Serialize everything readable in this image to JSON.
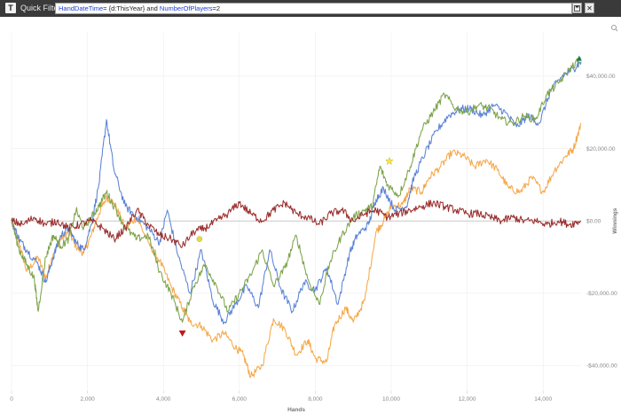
{
  "toolbar": {
    "filter_button_glyph": "T",
    "label": "Quick Filters",
    "query_parts": [
      {
        "text": "HandDateTime",
        "kind": "kw"
      },
      {
        "text": "= {d:ThisYear} and ",
        "kind": "tx"
      },
      {
        "text": "NumberOfPlayers",
        "kind": "kw"
      },
      {
        "text": "=2",
        "kind": "tx"
      }
    ],
    "save_icon": "floppy-disk-icon",
    "close_label": "✕"
  },
  "chart_data": {
    "type": "line",
    "xlabel": "Hands",
    "ylabel": "Winnings",
    "xlim": [
      0,
      15000
    ],
    "ylim": [
      -47000,
      52000
    ],
    "x_ticks": [
      {
        "value": 0,
        "label": "0"
      },
      {
        "value": 2000,
        "label": "2,000"
      },
      {
        "value": 4000,
        "label": "4,000"
      },
      {
        "value": 6000,
        "label": "6,000"
      },
      {
        "value": 8000,
        "label": "8,000"
      },
      {
        "value": 10000,
        "label": "10,000"
      },
      {
        "value": 12000,
        "label": "12,000"
      },
      {
        "value": 14000,
        "label": "14,000"
      }
    ],
    "y_ticks": [
      {
        "value": 40000,
        "label": "$40,000.00"
      },
      {
        "value": 20000,
        "label": "$20,000.00"
      },
      {
        "value": 0,
        "label": "$0.00"
      },
      {
        "value": -20000,
        "label": "-$20,000.00"
      },
      {
        "value": -40000,
        "label": "-$40,000.00"
      }
    ],
    "grid": true,
    "series": [
      {
        "color": "#f6a84a",
        "points": [
          [
            0,
            0
          ],
          [
            200,
            -6000
          ],
          [
            400,
            -14000
          ],
          [
            700,
            -10000
          ],
          [
            900,
            -16000
          ],
          [
            1100,
            -9000
          ],
          [
            1300,
            -5000
          ],
          [
            1500,
            -3000
          ],
          [
            1700,
            -7000
          ],
          [
            1900,
            -9000
          ],
          [
            2100,
            -4000
          ],
          [
            2300,
            2000
          ],
          [
            2500,
            6500
          ],
          [
            2700,
            5000
          ],
          [
            3000,
            -2000
          ],
          [
            3300,
            1000
          ],
          [
            3600,
            -6000
          ],
          [
            3900,
            -11000
          ],
          [
            4200,
            -18000
          ],
          [
            4500,
            -24000
          ],
          [
            4700,
            -28000
          ],
          [
            5000,
            -29000
          ],
          [
            5300,
            -33000
          ],
          [
            5600,
            -31000
          ],
          [
            5900,
            -35000
          ],
          [
            6100,
            -37000
          ],
          [
            6300,
            -43000
          ],
          [
            6600,
            -40000
          ],
          [
            6900,
            -27000
          ],
          [
            7200,
            -30000
          ],
          [
            7500,
            -37000
          ],
          [
            7800,
            -33000
          ],
          [
            8000,
            -38000
          ],
          [
            8300,
            -39000
          ],
          [
            8500,
            -29000
          ],
          [
            8800,
            -24000
          ],
          [
            9000,
            -28000
          ],
          [
            9300,
            -22000
          ],
          [
            9600,
            -3000
          ],
          [
            9800,
            0
          ],
          [
            10000,
            4000
          ],
          [
            10300,
            4500
          ],
          [
            10500,
            9000
          ],
          [
            10800,
            8000
          ],
          [
            11000,
            12000
          ],
          [
            11300,
            15000
          ],
          [
            11600,
            19000
          ],
          [
            11900,
            18000
          ],
          [
            12200,
            15000
          ],
          [
            12500,
            17000
          ],
          [
            12800,
            14000
          ],
          [
            13100,
            9000
          ],
          [
            13400,
            8000
          ],
          [
            13700,
            12000
          ],
          [
            14000,
            8000
          ],
          [
            14300,
            14000
          ],
          [
            14600,
            18000
          ],
          [
            14800,
            20000
          ],
          [
            15000,
            27000
          ]
        ]
      },
      {
        "color": "#5b83d6",
        "points": [
          [
            0,
            0
          ],
          [
            200,
            -5000
          ],
          [
            400,
            -8000
          ],
          [
            700,
            -12000
          ],
          [
            900,
            -17000
          ],
          [
            1100,
            -10000
          ],
          [
            1300,
            -4000
          ],
          [
            1500,
            -2000
          ],
          [
            1700,
            -6000
          ],
          [
            1900,
            -8000
          ],
          [
            2100,
            -1000
          ],
          [
            2300,
            10000
          ],
          [
            2500,
            28000
          ],
          [
            2700,
            14000
          ],
          [
            3000,
            4000
          ],
          [
            3300,
            1000
          ],
          [
            3600,
            -2000
          ],
          [
            3900,
            -6000
          ],
          [
            4100,
            3000
          ],
          [
            4400,
            -10000
          ],
          [
            4700,
            -20000
          ],
          [
            5000,
            -8000
          ],
          [
            5300,
            -22000
          ],
          [
            5600,
            -28000
          ],
          [
            5900,
            -23000
          ],
          [
            6200,
            -18000
          ],
          [
            6500,
            -24000
          ],
          [
            6800,
            -8000
          ],
          [
            7100,
            -19000
          ],
          [
            7400,
            -25000
          ],
          [
            7700,
            -17000
          ],
          [
            8000,
            -19000
          ],
          [
            8300,
            -13000
          ],
          [
            8600,
            -23000
          ],
          [
            8900,
            -9000
          ],
          [
            9100,
            -4000
          ],
          [
            9400,
            -1000
          ],
          [
            9600,
            6000
          ],
          [
            9800,
            9000
          ],
          [
            10100,
            3000
          ],
          [
            10400,
            4000
          ],
          [
            10600,
            12000
          ],
          [
            10900,
            19000
          ],
          [
            11200,
            25000
          ],
          [
            11500,
            29000
          ],
          [
            11800,
            31000
          ],
          [
            12100,
            31000
          ],
          [
            12400,
            29000
          ],
          [
            12700,
            32000
          ],
          [
            13000,
            30000
          ],
          [
            13300,
            26000
          ],
          [
            13600,
            29000
          ],
          [
            13900,
            27000
          ],
          [
            14200,
            36000
          ],
          [
            14500,
            40000
          ],
          [
            14800,
            42000
          ],
          [
            15000,
            44000
          ]
        ]
      },
      {
        "color": "#7ea34b",
        "points": [
          [
            0,
            0
          ],
          [
            200,
            -8000
          ],
          [
            400,
            -12000
          ],
          [
            600,
            -16000
          ],
          [
            700,
            -25000
          ],
          [
            900,
            -10000
          ],
          [
            1100,
            -4000
          ],
          [
            1300,
            -7000
          ],
          [
            1500,
            -5000
          ],
          [
            1700,
            3000
          ],
          [
            1900,
            -2000
          ],
          [
            2100,
            1000
          ],
          [
            2300,
            4000
          ],
          [
            2500,
            8000
          ],
          [
            2700,
            4000
          ],
          [
            3000,
            -2000
          ],
          [
            3300,
            -5000
          ],
          [
            3600,
            -4000
          ],
          [
            3900,
            -14000
          ],
          [
            4200,
            -20000
          ],
          [
            4500,
            -28000
          ],
          [
            4800,
            -18000
          ],
          [
            5100,
            -12000
          ],
          [
            5400,
            -18000
          ],
          [
            5700,
            -25000
          ],
          [
            6000,
            -20000
          ],
          [
            6300,
            -15000
          ],
          [
            6600,
            -8000
          ],
          [
            6900,
            -18000
          ],
          [
            7200,
            -13000
          ],
          [
            7500,
            -4000
          ],
          [
            7800,
            -16000
          ],
          [
            8100,
            -23000
          ],
          [
            8400,
            -11000
          ],
          [
            8700,
            -4000
          ],
          [
            9000,
            1000
          ],
          [
            9300,
            3000
          ],
          [
            9500,
            4000
          ],
          [
            9700,
            15000
          ],
          [
            9900,
            10000
          ],
          [
            10200,
            7000
          ],
          [
            10500,
            15000
          ],
          [
            10800,
            25000
          ],
          [
            11100,
            30000
          ],
          [
            11400,
            35000
          ],
          [
            11700,
            31000
          ],
          [
            12000,
            30000
          ],
          [
            12300,
            32000
          ],
          [
            12600,
            31000
          ],
          [
            12900,
            28000
          ],
          [
            13200,
            27000
          ],
          [
            13500,
            29000
          ],
          [
            13800,
            28000
          ],
          [
            14100,
            35000
          ],
          [
            14400,
            38000
          ],
          [
            14700,
            42000
          ],
          [
            15000,
            45000
          ]
        ]
      },
      {
        "color": "#9b2e2e",
        "points": [
          [
            0,
            0
          ],
          [
            300,
            -1000
          ],
          [
            600,
            1000
          ],
          [
            900,
            -1000
          ],
          [
            1200,
            0
          ],
          [
            1500,
            -2000
          ],
          [
            1800,
            -1000
          ],
          [
            2100,
            0
          ],
          [
            2400,
            -2000
          ],
          [
            2700,
            -5000
          ],
          [
            3000,
            -2000
          ],
          [
            3300,
            3000
          ],
          [
            3600,
            -1000
          ],
          [
            3900,
            -4000
          ],
          [
            4200,
            -5000
          ],
          [
            4500,
            -7000
          ],
          [
            4800,
            -3000
          ],
          [
            5100,
            -2000
          ],
          [
            5400,
            0
          ],
          [
            5700,
            2000
          ],
          [
            6000,
            5000
          ],
          [
            6300,
            2000
          ],
          [
            6600,
            0
          ],
          [
            6900,
            3000
          ],
          [
            7200,
            5000
          ],
          [
            7500,
            2000
          ],
          [
            7800,
            1000
          ],
          [
            8100,
            -1000
          ],
          [
            8400,
            2000
          ],
          [
            8700,
            3000
          ],
          [
            9000,
            0
          ],
          [
            9300,
            2000
          ],
          [
            9600,
            3000
          ],
          [
            9900,
            1000
          ],
          [
            10200,
            2000
          ],
          [
            10500,
            3000
          ],
          [
            10800,
            4000
          ],
          [
            11100,
            5000
          ],
          [
            11400,
            4000
          ],
          [
            11700,
            3000
          ],
          [
            12000,
            2000
          ],
          [
            12300,
            2000
          ],
          [
            12600,
            1000
          ],
          [
            12900,
            0
          ],
          [
            13200,
            1000
          ],
          [
            13500,
            0
          ],
          [
            13800,
            0
          ],
          [
            14100,
            -1000
          ],
          [
            14400,
            0
          ],
          [
            14700,
            -1000
          ],
          [
            15000,
            0
          ]
        ]
      }
    ],
    "markers": [
      {
        "shape": "triangle-down",
        "color": "#c0191b",
        "x": 4500,
        "y": -31000
      },
      {
        "shape": "circle",
        "color": "#e6d94a",
        "x": 4950,
        "y": -5000
      },
      {
        "shape": "star",
        "color": "#f5e84a",
        "x": 9950,
        "y": 16500
      },
      {
        "shape": "triangle-up",
        "color": "#1a7a4a",
        "x": 14950,
        "y": 45000
      }
    ]
  }
}
